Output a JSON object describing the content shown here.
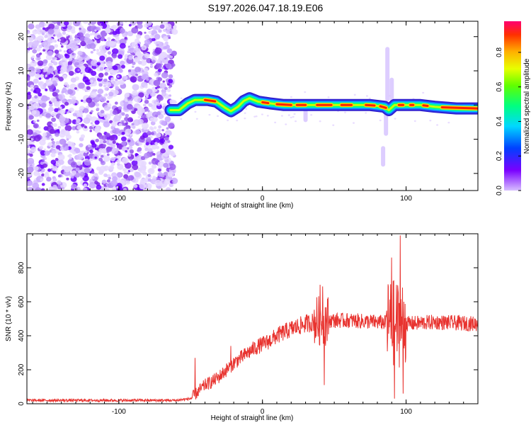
{
  "title": "S197.2026.047.18.19.E06",
  "chart_data": [
    {
      "type": "heatmap",
      "name": "spectrogram",
      "xlabel": "Height of straight line (km)",
      "ylabel": "Frequency (Hz)",
      "xlim": [
        -164,
        150
      ],
      "ylim": [
        -25,
        24.5
      ],
      "xticks": [
        -100,
        0,
        100
      ],
      "yticks": [
        -20,
        -10,
        0,
        10,
        20
      ],
      "noise_region": {
        "x_start": -164,
        "x_end": -61,
        "y_range": [
          -25,
          24.5
        ],
        "amplitude_range": [
          0.05,
          0.2
        ]
      },
      "ridge": [
        {
          "x": -64,
          "y": -1.5
        },
        {
          "x": -58,
          "y": -1.5
        },
        {
          "x": -52,
          "y": 0.5
        },
        {
          "x": -47,
          "y": 1.5
        },
        {
          "x": -38,
          "y": 1.5
        },
        {
          "x": -32,
          "y": 1.0
        },
        {
          "x": -26,
          "y": -0.8
        },
        {
          "x": -22,
          "y": -1.8
        },
        {
          "x": -17,
          "y": -0.5
        },
        {
          "x": -13,
          "y": 1.2
        },
        {
          "x": -9,
          "y": 2.0
        },
        {
          "x": -3,
          "y": 1.0
        },
        {
          "x": 5,
          "y": 0.5
        },
        {
          "x": 15,
          "y": 0.0
        },
        {
          "x": 30,
          "y": 0.0
        },
        {
          "x": 45,
          "y": 0.0
        },
        {
          "x": 60,
          "y": 0.0
        },
        {
          "x": 75,
          "y": 0.0
        },
        {
          "x": 85,
          "y": -0.5
        },
        {
          "x": 88,
          "y": -1.5
        },
        {
          "x": 92,
          "y": 0.0
        },
        {
          "x": 100,
          "y": 0.0
        },
        {
          "x": 110,
          "y": 0.0
        },
        {
          "x": 120,
          "y": -0.5
        },
        {
          "x": 135,
          "y": -1.0
        },
        {
          "x": 150,
          "y": -1.0
        }
      ],
      "ridge_peak_segments": [
        [
          -40,
          -33
        ],
        [
          0,
          4
        ],
        [
          10,
          20
        ],
        [
          24,
          30
        ],
        [
          38,
          48
        ],
        [
          55,
          62
        ],
        [
          72,
          78
        ],
        [
          82,
          86
        ],
        [
          95,
          98
        ],
        [
          103,
          105
        ],
        [
          112,
          115
        ],
        [
          125,
          150
        ]
      ],
      "disturbances": [
        {
          "x": 87,
          "y_from": 1,
          "y_to": 17
        },
        {
          "x": 90,
          "y_from": 1,
          "y_to": 8
        },
        {
          "x": 86,
          "y_from": -9,
          "y_to": -1
        },
        {
          "x": 30,
          "y_from": -5,
          "y_to": -1
        },
        {
          "x": 84,
          "y_from": -18,
          "y_to": -12
        }
      ],
      "colorbar": {
        "label": "Normalized spectral amplitude",
        "range": [
          0.0,
          0.98
        ],
        "ticks": [
          "0.0",
          "0.2",
          "0.4",
          "0.6",
          "0.8"
        ],
        "colors": [
          "#c8a0ff",
          "#6a00ff",
          "#0050ff",
          "#00e0ff",
          "#00ff60",
          "#d0ff00",
          "#ffc000",
          "#ff4000",
          "#ff0060"
        ]
      }
    },
    {
      "type": "line",
      "name": "snr",
      "xlabel": "Height of straight line (km)",
      "ylabel": "SNR (10 * v/v)",
      "xlim": [
        -164,
        150
      ],
      "ylim": [
        0,
        1000
      ],
      "xticks": [
        -100,
        0,
        100
      ],
      "yticks": [
        0,
        200,
        400,
        600,
        800
      ],
      "color": "#e8332f",
      "baseline": [
        {
          "x": -164,
          "y": 20
        },
        {
          "x": -60,
          "y": 20
        },
        {
          "x": -50,
          "y": 30
        },
        {
          "x": -45,
          "y": 70
        },
        {
          "x": -40,
          "y": 110
        },
        {
          "x": -35,
          "y": 130
        },
        {
          "x": -30,
          "y": 160
        },
        {
          "x": -25,
          "y": 200
        },
        {
          "x": -20,
          "y": 240
        },
        {
          "x": -15,
          "y": 270
        },
        {
          "x": -10,
          "y": 300
        },
        {
          "x": -5,
          "y": 330
        },
        {
          "x": 0,
          "y": 350
        },
        {
          "x": 5,
          "y": 370
        },
        {
          "x": 10,
          "y": 400
        },
        {
          "x": 20,
          "y": 440
        },
        {
          "x": 30,
          "y": 470
        },
        {
          "x": 40,
          "y": 490
        },
        {
          "x": 60,
          "y": 490
        },
        {
          "x": 80,
          "y": 480
        },
        {
          "x": 100,
          "y": 470
        },
        {
          "x": 120,
          "y": 480
        },
        {
          "x": 150,
          "y": 470
        }
      ],
      "spikes": [
        {
          "x": -47,
          "y": 270
        },
        {
          "x": -22,
          "y": 340
        },
        {
          "x": -11,
          "y": 310
        },
        {
          "x": 40,
          "y": 700
        },
        {
          "x": 42,
          "y": 690
        },
        {
          "x": 43,
          "y": 110
        },
        {
          "x": 90,
          "y": 860
        },
        {
          "x": 92,
          "y": 30
        },
        {
          "x": 96,
          "y": 990
        },
        {
          "x": 98,
          "y": 60
        }
      ]
    }
  ]
}
